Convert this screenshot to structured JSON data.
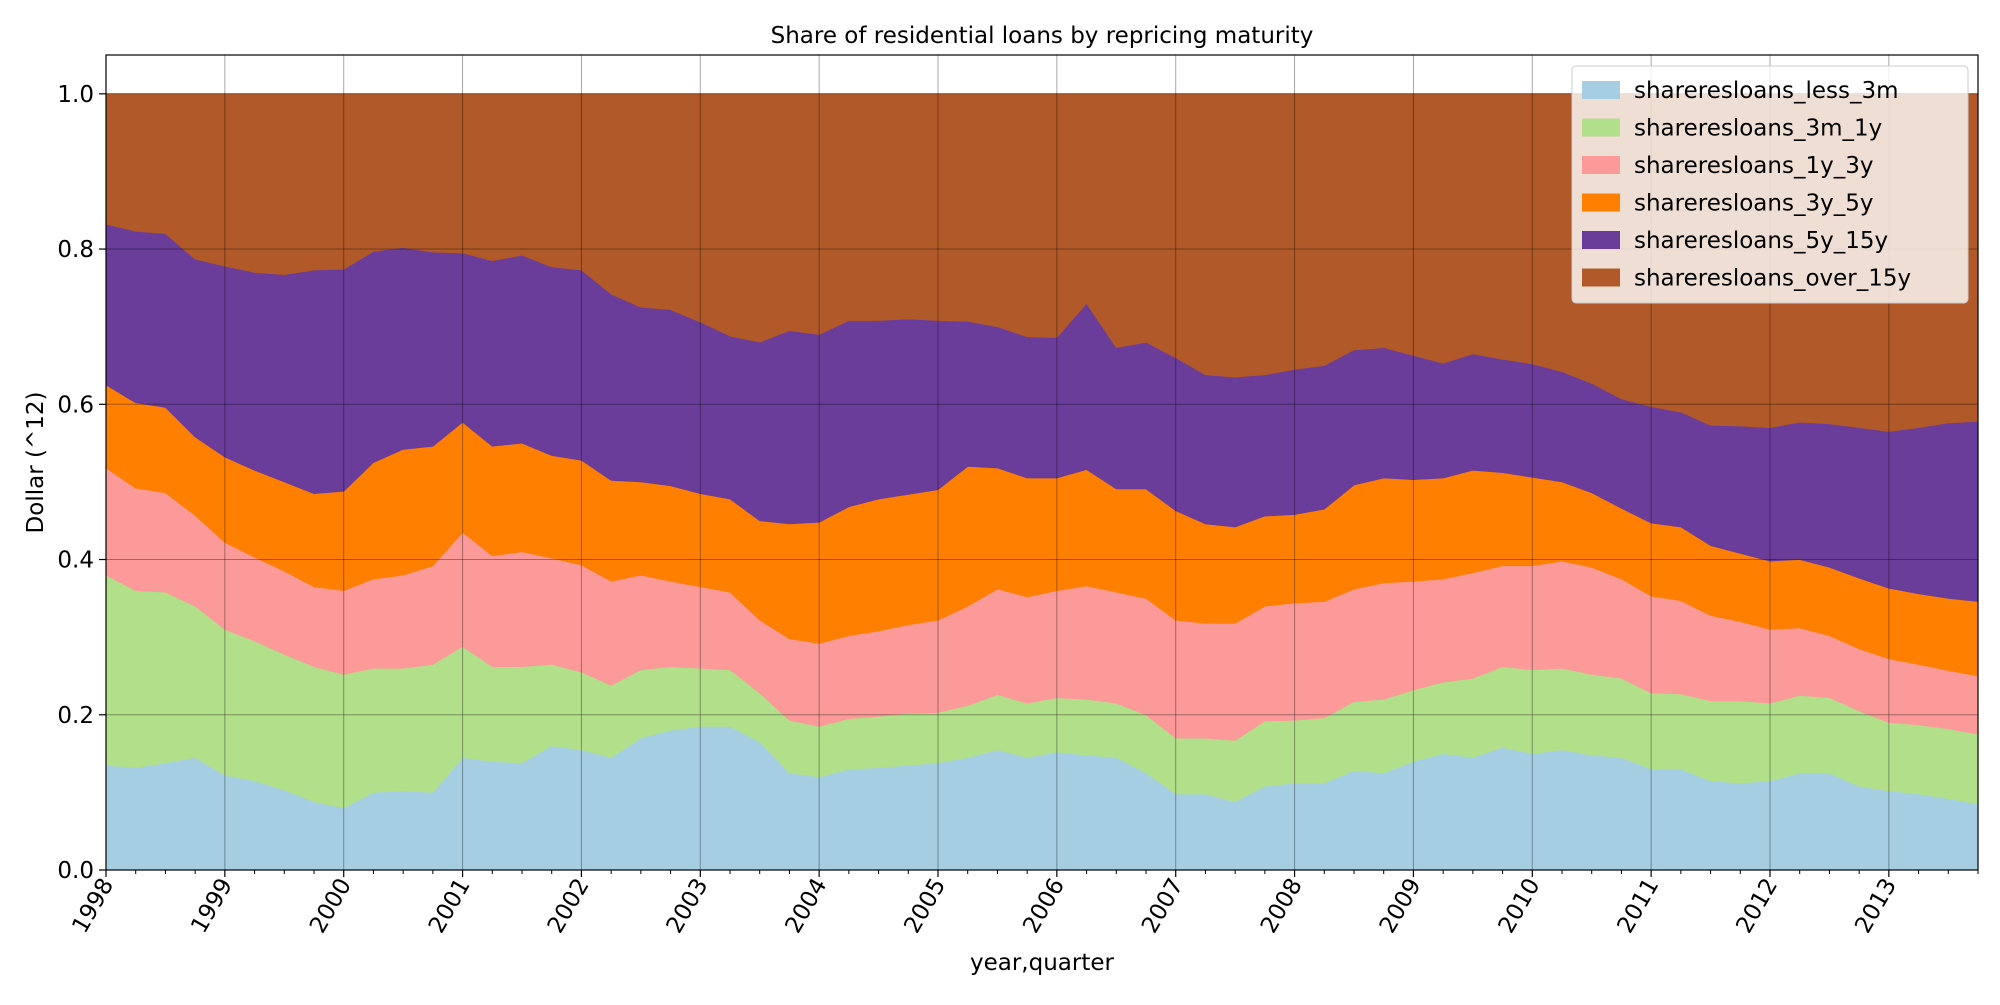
{
  "chart_data": {
    "type": "area",
    "stacked": true,
    "title": "Share of residential loans by repricing maturity",
    "xlabel": "year,quarter",
    "ylabel": "Dollar (^12)",
    "ylim": [
      0,
      1.05
    ],
    "yticks": [
      0.0,
      0.2,
      0.4,
      0.6,
      0.8,
      1.0
    ],
    "ytick_labels": [
      "0.0",
      "0.2",
      "0.4",
      "0.6",
      "0.8",
      "1.0"
    ],
    "xlim": [
      1998.0,
      2013.75
    ],
    "xticks": [
      1998,
      1999,
      2000,
      2001,
      2002,
      2003,
      2004,
      2005,
      2006,
      2007,
      2008,
      2009,
      2010,
      2011,
      2012,
      2013
    ],
    "xtick_labels": [
      "1998",
      "1999",
      "2000",
      "2001",
      "2002",
      "2003",
      "2004",
      "2005",
      "2006",
      "2007",
      "2008",
      "2009",
      "2010",
      "2011",
      "2012",
      "2013"
    ],
    "grid": true,
    "legend_position": "top-right",
    "x": [
      1998.0,
      1998.25,
      1998.5,
      1998.75,
      1999.0,
      1999.25,
      1999.5,
      1999.75,
      2000.0,
      2000.25,
      2000.5,
      2000.75,
      2001.0,
      2001.25,
      2001.5,
      2001.75,
      2002.0,
      2002.25,
      2002.5,
      2002.75,
      2003.0,
      2003.25,
      2003.5,
      2003.75,
      2004.0,
      2004.25,
      2004.5,
      2004.75,
      2005.0,
      2005.25,
      2005.5,
      2005.75,
      2006.0,
      2006.25,
      2006.5,
      2006.75,
      2007.0,
      2007.25,
      2007.5,
      2007.75,
      2008.0,
      2008.25,
      2008.5,
      2008.75,
      2009.0,
      2009.25,
      2009.5,
      2009.75,
      2010.0,
      2010.25,
      2010.5,
      2010.75,
      2011.0,
      2011.25,
      2011.5,
      2011.75,
      2012.0,
      2012.25,
      2012.5,
      2012.75,
      2013.0,
      2013.25,
      2013.5,
      2013.75
    ],
    "series": [
      {
        "name": "shareresloans_less_3m",
        "color": "#a6cee3",
        "cumulative_top": [
          0.135,
          0.132,
          0.138,
          0.145,
          0.122,
          0.115,
          0.103,
          0.088,
          0.08,
          0.1,
          0.102,
          0.1,
          0.145,
          0.14,
          0.138,
          0.16,
          0.155,
          0.145,
          0.17,
          0.18,
          0.185,
          0.185,
          0.165,
          0.125,
          0.12,
          0.13,
          0.132,
          0.135,
          0.138,
          0.145,
          0.155,
          0.145,
          0.152,
          0.148,
          0.145,
          0.125,
          0.098,
          0.098,
          0.088,
          0.108,
          0.112,
          0.112,
          0.128,
          0.125,
          0.14,
          0.15,
          0.145,
          0.158,
          0.15,
          0.155,
          0.148,
          0.145,
          0.13,
          0.13,
          0.115,
          0.112,
          0.115,
          0.125,
          0.125,
          0.108,
          0.102,
          0.098,
          0.092,
          0.085
        ]
      },
      {
        "name": "shareresloans_3m_1y",
        "color": "#b2df8a",
        "cumulative_top": [
          0.38,
          0.36,
          0.358,
          0.34,
          0.31,
          0.295,
          0.278,
          0.262,
          0.252,
          0.26,
          0.26,
          0.265,
          0.288,
          0.262,
          0.262,
          0.265,
          0.255,
          0.238,
          0.258,
          0.262,
          0.26,
          0.258,
          0.228,
          0.193,
          0.185,
          0.195,
          0.198,
          0.202,
          0.203,
          0.212,
          0.226,
          0.215,
          0.222,
          0.22,
          0.215,
          0.2,
          0.17,
          0.17,
          0.167,
          0.192,
          0.193,
          0.196,
          0.217,
          0.22,
          0.232,
          0.242,
          0.247,
          0.262,
          0.258,
          0.26,
          0.252,
          0.247,
          0.228,
          0.227,
          0.218,
          0.218,
          0.215,
          0.225,
          0.222,
          0.205,
          0.19,
          0.187,
          0.182,
          0.175
        ]
      },
      {
        "name": "shareresloans_1y_3y",
        "color": "#fb9a99",
        "cumulative_top": [
          0.518,
          0.492,
          0.486,
          0.457,
          0.422,
          0.403,
          0.385,
          0.365,
          0.36,
          0.375,
          0.38,
          0.392,
          0.435,
          0.405,
          0.41,
          0.402,
          0.393,
          0.372,
          0.38,
          0.372,
          0.365,
          0.358,
          0.322,
          0.298,
          0.292,
          0.302,
          0.308,
          0.316,
          0.322,
          0.34,
          0.362,
          0.352,
          0.36,
          0.366,
          0.358,
          0.35,
          0.322,
          0.318,
          0.318,
          0.34,
          0.344,
          0.346,
          0.362,
          0.37,
          0.372,
          0.375,
          0.383,
          0.392,
          0.392,
          0.398,
          0.39,
          0.375,
          0.353,
          0.347,
          0.328,
          0.32,
          0.31,
          0.312,
          0.302,
          0.285,
          0.272,
          0.265,
          0.257,
          0.25
        ]
      },
      {
        "name": "shareresloans_3y_5y",
        "color": "#ff7f00",
        "cumulative_top": [
          0.625,
          0.602,
          0.596,
          0.558,
          0.532,
          0.515,
          0.5,
          0.485,
          0.488,
          0.525,
          0.542,
          0.546,
          0.577,
          0.546,
          0.55,
          0.534,
          0.528,
          0.502,
          0.5,
          0.495,
          0.485,
          0.478,
          0.45,
          0.446,
          0.448,
          0.468,
          0.478,
          0.484,
          0.49,
          0.52,
          0.518,
          0.505,
          0.505,
          0.516,
          0.491,
          0.491,
          0.463,
          0.446,
          0.442,
          0.456,
          0.458,
          0.465,
          0.496,
          0.505,
          0.503,
          0.505,
          0.515,
          0.512,
          0.506,
          0.5,
          0.486,
          0.466,
          0.447,
          0.442,
          0.418,
          0.408,
          0.398,
          0.4,
          0.39,
          0.376,
          0.363,
          0.356,
          0.35,
          0.346
        ]
      },
      {
        "name": "shareresloans_5y_15y",
        "color": "#6a3d9a",
        "cumulative_top": [
          0.832,
          0.823,
          0.82,
          0.787,
          0.778,
          0.77,
          0.767,
          0.773,
          0.774,
          0.797,
          0.802,
          0.796,
          0.795,
          0.785,
          0.792,
          0.777,
          0.773,
          0.742,
          0.725,
          0.722,
          0.706,
          0.688,
          0.68,
          0.695,
          0.69,
          0.708,
          0.708,
          0.71,
          0.708,
          0.707,
          0.7,
          0.687,
          0.686,
          0.73,
          0.673,
          0.68,
          0.66,
          0.638,
          0.635,
          0.638,
          0.645,
          0.65,
          0.67,
          0.673,
          0.663,
          0.653,
          0.665,
          0.658,
          0.652,
          0.642,
          0.627,
          0.607,
          0.597,
          0.59,
          0.573,
          0.572,
          0.57,
          0.577,
          0.575,
          0.57,
          0.565,
          0.57,
          0.576,
          0.578
        ]
      },
      {
        "name": "shareresloans_over_15y",
        "color": "#b15928",
        "cumulative_top": [
          1.0,
          1.0,
          1.0,
          1.0,
          1.0,
          1.0,
          1.0,
          1.0,
          1.0,
          1.0,
          1.0,
          1.0,
          1.0,
          1.0,
          1.0,
          1.0,
          1.0,
          1.0,
          1.0,
          1.0,
          1.0,
          1.0,
          1.0,
          1.0,
          1.0,
          1.0,
          1.0,
          1.0,
          1.0,
          1.0,
          1.0,
          1.0,
          1.0,
          1.0,
          1.0,
          1.0,
          1.0,
          1.0,
          1.0,
          1.0,
          1.0,
          1.0,
          1.0,
          1.0,
          1.0,
          1.0,
          1.0,
          1.0,
          1.0,
          1.0,
          1.0,
          1.0,
          1.0,
          1.0,
          1.0,
          1.0,
          1.0,
          1.0,
          1.0,
          1.0,
          1.0,
          1.0,
          1.0,
          1.0
        ]
      }
    ]
  }
}
